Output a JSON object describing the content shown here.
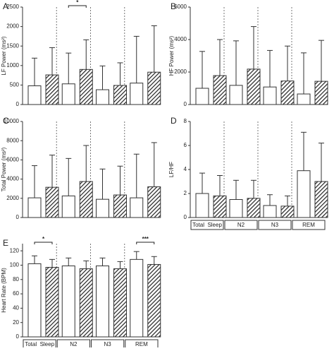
{
  "chart_data": [
    {
      "type": "bar",
      "panel_label": "A",
      "ylabel": "LF Power (ms²)",
      "categories": [
        null,
        null,
        null,
        null
      ],
      "series": [
        {
          "color": "#ffffff",
          "hatch": false,
          "values": [
            480,
            530,
            380,
            550
          ],
          "errors": [
            710,
            790,
            610,
            1200
          ]
        },
        {
          "color": "#ffffff",
          "hatch": true,
          "values": [
            760,
            900,
            490,
            830
          ],
          "errors": [
            700,
            760,
            580,
            1190
          ]
        }
      ],
      "ylim": [
        0,
        2500
      ],
      "yticks": [
        0,
        500,
        1000,
        1500,
        2000,
        2500
      ],
      "annotations": [
        {
          "text": "*",
          "category_index": 1
        }
      ]
    },
    {
      "type": "bar",
      "panel_label": "B",
      "ylabel": "HF Power (ms²)",
      "categories": [
        null,
        null,
        null,
        null
      ],
      "series": [
        {
          "color": "#ffffff",
          "hatch": false,
          "values": [
            1000,
            1180,
            1080,
            650
          ],
          "errors": [
            2270,
            2740,
            2250,
            2530
          ]
        },
        {
          "color": "#ffffff",
          "hatch": true,
          "values": [
            1780,
            2180,
            1450,
            1430
          ],
          "errors": [
            2220,
            2620,
            2150,
            2520
          ]
        }
      ],
      "ylim": [
        0,
        6000
      ],
      "yticks": [
        0,
        2000,
        4000,
        6000
      ],
      "annotations": []
    },
    {
      "type": "bar",
      "panel_label": "C",
      "ylabel": "Total Power (ms²)",
      "categories": [
        null,
        null,
        null,
        null
      ],
      "series": [
        {
          "color": "#ffffff",
          "hatch": false,
          "values": [
            2050,
            2250,
            1900,
            2050
          ],
          "errors": [
            3350,
            3900,
            3150,
            4550
          ]
        },
        {
          "color": "#ffffff",
          "hatch": true,
          "values": [
            3150,
            3750,
            2350,
            3200
          ],
          "errors": [
            3350,
            3750,
            3000,
            4600
          ]
        }
      ],
      "ylim": [
        0,
        10000
      ],
      "yticks": [
        0,
        2000,
        4000,
        6000,
        8000,
        10000
      ],
      "annotations": []
    },
    {
      "type": "bar",
      "panel_label": "D",
      "ylabel": "LF/HF",
      "categories": [
        "Total  Sleep",
        "N2",
        "N3",
        "REM"
      ],
      "series": [
        {
          "color": "#ffffff",
          "hatch": false,
          "values": [
            2.0,
            1.5,
            1.0,
            3.9
          ],
          "errors": [
            1.7,
            1.6,
            0.9,
            3.2
          ]
        },
        {
          "color": "#ffffff",
          "hatch": true,
          "values": [
            1.8,
            1.6,
            0.95,
            3.0
          ],
          "errors": [
            1.7,
            1.5,
            0.85,
            3.2
          ]
        }
      ],
      "ylim": [
        0,
        8
      ],
      "yticks": [
        0,
        2,
        4,
        6,
        8
      ],
      "annotations": []
    },
    {
      "type": "bar",
      "panel_label": "E",
      "ylabel": "Heart Rate (BPM)",
      "categories": [
        "Total  Sleep",
        "N2",
        "N3",
        "REM"
      ],
      "series": [
        {
          "color": "#ffffff",
          "hatch": false,
          "values": [
            102,
            99,
            99,
            108
          ],
          "errors": [
            11,
            11,
            11,
            11
          ]
        },
        {
          "color": "#ffffff",
          "hatch": true,
          "values": [
            97,
            95,
            95,
            101
          ],
          "errors": [
            11,
            11,
            10,
            11
          ]
        }
      ],
      "ylim": [
        0,
        130
      ],
      "yticks": [
        0,
        20,
        40,
        60,
        80,
        100,
        120
      ],
      "annotations": [
        {
          "text": "*",
          "category_index": 0
        },
        {
          "text": "***",
          "category_index": 3
        }
      ]
    }
  ]
}
